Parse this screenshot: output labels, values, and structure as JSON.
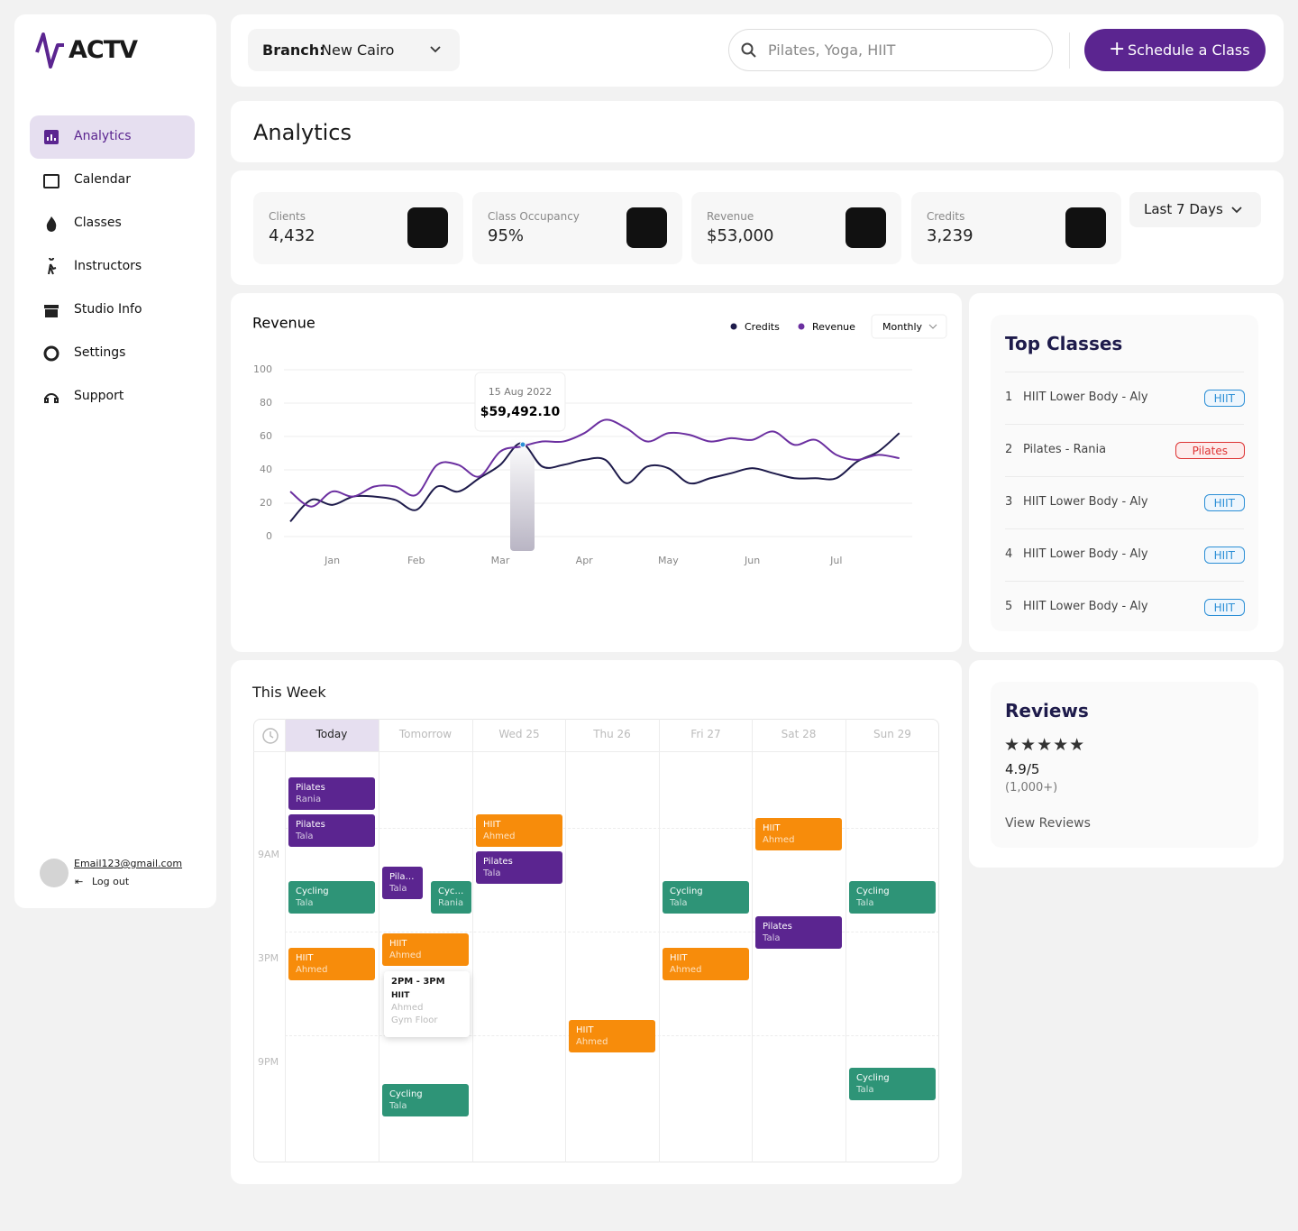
{
  "sidebar": {
    "logo": "ACTV",
    "nav": [
      "Analytics",
      "Calendar",
      "Classes",
      "Instructors",
      "Studio Info",
      "Settings",
      "Support"
    ],
    "email": "Email123@gmail.com",
    "logout": "Log out"
  },
  "header": {
    "branch_label": "Branch:",
    "branch": "New Cairo",
    "search_placeholder": "Pilates, Yoga, HIIT",
    "action": "Schedule a Class"
  },
  "page_title": "Analytics",
  "stats": {
    "items": [
      {
        "label": "Clients",
        "value": "4,432"
      },
      {
        "label": "Class Occupancy",
        "value": "95%"
      },
      {
        "label": "Revenue",
        "value": "$53,000"
      },
      {
        "label": "Credits",
        "value": "3,239"
      }
    ],
    "period": "Last 7 Days"
  },
  "chart_data": {
    "type": "line",
    "title": "Revenue",
    "period": "Monthly",
    "categories": [
      null,
      null,
      "Jan",
      null,
      null,
      null,
      "Feb",
      null,
      null,
      null,
      "Mar",
      null,
      null,
      null,
      "Apr",
      null,
      null,
      null,
      "May",
      null,
      null,
      null,
      "Jun",
      null,
      null,
      null,
      "Jul",
      null,
      null,
      null
    ],
    "series": [
      {
        "name": "Credits",
        "color": "#1e1b4b",
        "values": [
          9,
          22,
          19,
          24,
          24,
          22,
          16,
          30,
          27,
          35,
          43,
          56,
          42,
          43,
          46,
          46,
          32,
          42,
          41,
          32,
          35,
          38,
          41,
          38,
          35,
          35,
          35,
          45,
          51,
          62
        ]
      },
      {
        "name": "Revenue",
        "color": "#6b2fa0",
        "values": [
          27,
          18,
          27,
          24,
          30,
          30,
          25,
          43,
          43,
          36,
          51,
          54,
          57,
          57,
          62,
          70,
          65,
          57,
          62,
          61,
          57,
          59,
          58,
          63,
          55,
          58,
          49,
          46,
          49,
          47
        ]
      }
    ],
    "ylim": [
      0,
      100
    ],
    "yticks": [
      0,
      20,
      40,
      60,
      80,
      100
    ],
    "grid": true,
    "tooltip": {
      "date": "15 Aug 2022",
      "value": "$59,492.10"
    }
  },
  "top_classes": {
    "title": "Top Classes",
    "items": [
      {
        "rank": 1,
        "name": "HIIT Lower Body - Aly",
        "tag": "HIIT"
      },
      {
        "rank": 2,
        "name": "Pilates - Rania",
        "tag": "Pilates"
      },
      {
        "rank": 3,
        "name": "HIIT Lower Body - Aly",
        "tag": "HIIT"
      },
      {
        "rank": 4,
        "name": "HIIT Lower Body - Aly",
        "tag": "HIIT"
      },
      {
        "rank": 5,
        "name": "HIIT Lower Body - Aly",
        "tag": "HIIT"
      }
    ]
  },
  "reviews": {
    "title": "Reviews",
    "rating": "4.9/5",
    "count": "(1,000+)",
    "link": "View Reviews"
  },
  "week": {
    "title": "This Week",
    "times": [
      "9AM",
      "3PM",
      "9PM"
    ],
    "days": [
      {
        "label": "Today",
        "events": [
          {
            "title": "Pilates",
            "instructor": "Rania"
          },
          {
            "title": "Pilates",
            "instructor": "Tala"
          },
          {
            "title": "Cycling",
            "instructor": "Tala"
          },
          {
            "title": "HIIT",
            "instructor": "Ahmed"
          }
        ]
      },
      {
        "label": "Tomorrow",
        "events": [
          {
            "title": "Pilates",
            "instructor": "Tala"
          },
          {
            "title": "Cycling",
            "instructor": "Rania"
          },
          {
            "title": "HIIT",
            "instructor": "Ahmed"
          },
          {
            "title": "Cycling",
            "instructor": "Tala"
          }
        ]
      },
      {
        "label": "Wed 25",
        "events": [
          {
            "title": "HIIT",
            "instructor": "Ahmed"
          },
          {
            "title": "Pilates",
            "instructor": "Tala"
          }
        ]
      },
      {
        "label": "Thu 26",
        "events": [
          {
            "title": "HIIT",
            "instructor": "Ahmed"
          }
        ]
      },
      {
        "label": "Fri 27",
        "events": [
          {
            "title": "Cycling",
            "instructor": "Tala"
          },
          {
            "title": "HIIT",
            "instructor": "Ahmed"
          }
        ]
      },
      {
        "label": "Sat 28",
        "events": [
          {
            "title": "HIIT",
            "instructor": "Ahmed"
          },
          {
            "title": "Pilates",
            "instructor": "Tala"
          }
        ]
      },
      {
        "label": "Sun 29",
        "events": [
          {
            "title": "Cycling",
            "instructor": "Tala"
          },
          {
            "title": "Cycling",
            "instructor": "Tala"
          }
        ]
      }
    ],
    "detail": {
      "time": "2PM - 3PM",
      "title": "HIIT",
      "instructor": "Ahmed",
      "location": "Gym Floor"
    }
  }
}
